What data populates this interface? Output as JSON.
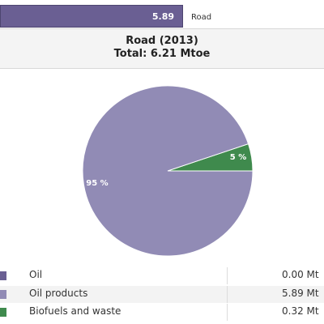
{
  "top_bar": {
    "value": "5.89",
    "label": "Road"
  },
  "header": {
    "title": "Road (2013)",
    "subtitle": "Total: 6.21 Mtoe"
  },
  "chart_data": {
    "type": "pie",
    "title": "Road (2013)",
    "subtitle": "Total: 6.21 Mtoe",
    "slices": [
      {
        "name": "Oil",
        "value": 0.0,
        "percent_label": "",
        "color": "#6a5f93"
      },
      {
        "name": "Oil products",
        "value": 5.89,
        "percent_label": "95 %",
        "color": "#918bb5"
      },
      {
        "name": "Biofuels and waste",
        "value": 0.32,
        "percent_label": "5 %",
        "color": "#3f8a4d"
      }
    ]
  },
  "legend": [
    {
      "name": "Oil",
      "value": "0.00 Mt",
      "color": "#6a5f93"
    },
    {
      "name": "Oil products",
      "value": "5.89 Mt",
      "color": "#918bb5"
    },
    {
      "name": "Biofuels and waste",
      "value": "0.32 Mt",
      "color": "#3f8a4d"
    }
  ]
}
